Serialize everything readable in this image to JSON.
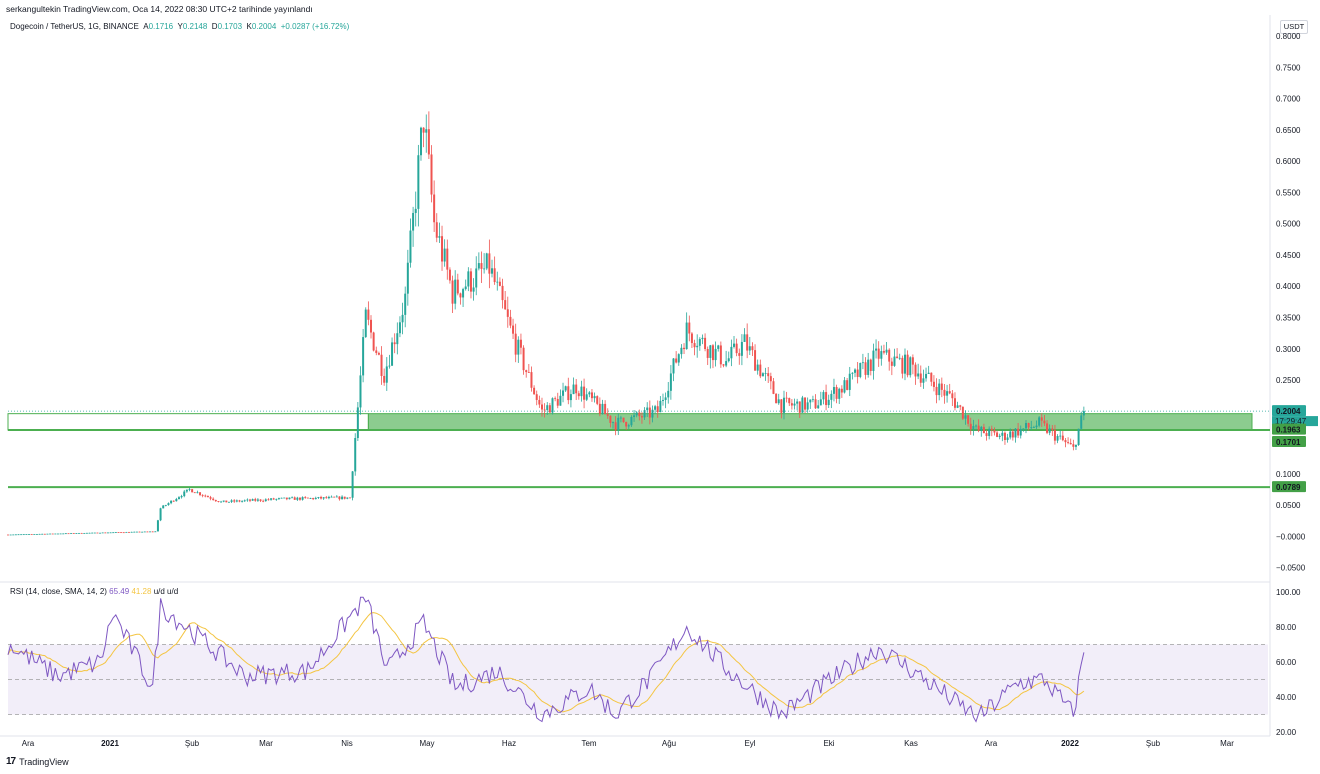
{
  "header": {
    "text": "serkangultekin TradingView.com, Oca 14, 2022 08:30 UTC+2 tarihinde yayınlandı"
  },
  "legend": {
    "symbol": "Dogecoin / TetherUS, 1G, BINANCE",
    "open_label": "A",
    "open": "0.1716",
    "high_label": "Y",
    "high": "0.2148",
    "low_label": "D",
    "low": "0.1703",
    "close_label": "K",
    "close": "0.2004",
    "change": "+0.0287 (+16.72%)"
  },
  "price_axis": {
    "unit": "USDT",
    "ticks": [
      "0.8000",
      "0.7500",
      "0.7000",
      "0.6500",
      "0.6000",
      "0.5500",
      "0.5000",
      "0.4500",
      "0.4000",
      "0.3500",
      "0.3000",
      "0.2500",
      "0.1000",
      "0.0500",
      "−0.0000",
      "−0.0500"
    ]
  },
  "price_labels": {
    "last": "0.2004",
    "countdown": "17:29:47",
    "zone_top": "0.1963",
    "zone_bottom": "0.1701",
    "support": "0.0789"
  },
  "rsi": {
    "legend_title": "RSI (14, close, SMA, 14, 2)",
    "rsi_value": "65.49",
    "sma_value": "41.28",
    "ud": "u/d u/d",
    "ticks": [
      "100.00",
      "80.00",
      "60.00",
      "40.00",
      "20.00"
    ]
  },
  "time_axis": [
    "Ara",
    "2021",
    "Şub",
    "Mar",
    "Nis",
    "May",
    "Haz",
    "Tem",
    "Ağu",
    "Eyl",
    "Eki",
    "Kas",
    "Ara",
    "2022",
    "Şub",
    "Mar"
  ],
  "footer": {
    "logo": "17",
    "brand": "TradingView"
  },
  "colors": {
    "up": "#26a69a",
    "down": "#ef5350",
    "zone": "#4caf50",
    "rsi": "#7e57c2",
    "rsi_sma": "#f4c542",
    "rsi_band": "#ede7f6"
  },
  "chart_data": {
    "type": "candlestick",
    "title": "Dogecoin / TetherUS, 1G, BINANCE",
    "ylabel": "USDT",
    "ylim": [
      -0.06,
      0.8
    ],
    "x_range": [
      "2020-12-01",
      "2022-03-25"
    ],
    "zones": [
      {
        "kind": "support_zone",
        "from": "2021-04-17",
        "bottom": 0.1701,
        "top": 0.1963
      },
      {
        "kind": "horizontal_line",
        "value": 0.1701
      },
      {
        "kind": "horizontal_line",
        "value": 0.0789
      }
    ],
    "last_price": 0.2004,
    "price_anchors": [
      {
        "date": "2020-12-01",
        "price": 0.003
      },
      {
        "date": "2021-01-26",
        "price": 0.008
      },
      {
        "date": "2021-01-28",
        "price": 0.045
      },
      {
        "date": "2021-02-08",
        "price": 0.075
      },
      {
        "date": "2021-02-20",
        "price": 0.055
      },
      {
        "date": "2021-03-15",
        "price": 0.06
      },
      {
        "date": "2021-04-10",
        "price": 0.062
      },
      {
        "date": "2021-04-16",
        "price": 0.35
      },
      {
        "date": "2021-04-23",
        "price": 0.26
      },
      {
        "date": "2021-05-01",
        "price": 0.38
      },
      {
        "date": "2021-05-08",
        "price": 0.67
      },
      {
        "date": "2021-05-12",
        "price": 0.5
      },
      {
        "date": "2021-05-19",
        "price": 0.39
      },
      {
        "date": "2021-06-02",
        "price": 0.43
      },
      {
        "date": "2021-06-10",
        "price": 0.33
      },
      {
        "date": "2021-06-22",
        "price": 0.2
      },
      {
        "date": "2021-07-05",
        "price": 0.24
      },
      {
        "date": "2021-07-20",
        "price": 0.18
      },
      {
        "date": "2021-08-05",
        "price": 0.2
      },
      {
        "date": "2021-08-16",
        "price": 0.33
      },
      {
        "date": "2021-08-31",
        "price": 0.28
      },
      {
        "date": "2021-09-07",
        "price": 0.31
      },
      {
        "date": "2021-09-21",
        "price": 0.21
      },
      {
        "date": "2021-10-03",
        "price": 0.21
      },
      {
        "date": "2021-10-15",
        "price": 0.24
      },
      {
        "date": "2021-10-28",
        "price": 0.29
      },
      {
        "date": "2021-11-10",
        "price": 0.27
      },
      {
        "date": "2021-11-25",
        "price": 0.22
      },
      {
        "date": "2021-12-04",
        "price": 0.17
      },
      {
        "date": "2021-12-14",
        "price": 0.16
      },
      {
        "date": "2021-12-28",
        "price": 0.18
      },
      {
        "date": "2022-01-10",
        "price": 0.14
      },
      {
        "date": "2022-01-14",
        "price": 0.2004
      }
    ],
    "rsi_series": {
      "name": "RSI (14, close, SMA, 14, 2)",
      "ylim": [
        20,
        100
      ],
      "bands": [
        30,
        50,
        70
      ],
      "last": 65.49,
      "sma_last": 41.28,
      "anchors": [
        {
          "date": "2020-12-01",
          "value": 70
        },
        {
          "date": "2020-12-20",
          "value": 52
        },
        {
          "date": "2021-01-05",
          "value": 60
        },
        {
          "date": "2021-01-10",
          "value": 88
        },
        {
          "date": "2021-01-25",
          "value": 45
        },
        {
          "date": "2021-01-28",
          "value": 92
        },
        {
          "date": "2021-02-15",
          "value": 70
        },
        {
          "date": "2021-03-01",
          "value": 52
        },
        {
          "date": "2021-03-25",
          "value": 55
        },
        {
          "date": "2021-04-16",
          "value": 97
        },
        {
          "date": "2021-04-24",
          "value": 55
        },
        {
          "date": "2021-05-08",
          "value": 82
        },
        {
          "date": "2021-05-20",
          "value": 45
        },
        {
          "date": "2021-06-05",
          "value": 55
        },
        {
          "date": "2021-06-22",
          "value": 30
        },
        {
          "date": "2021-07-10",
          "value": 45
        },
        {
          "date": "2021-07-20",
          "value": 30
        },
        {
          "date": "2021-08-03",
          "value": 52
        },
        {
          "date": "2021-08-16",
          "value": 80
        },
        {
          "date": "2021-09-01",
          "value": 55
        },
        {
          "date": "2021-09-21",
          "value": 30
        },
        {
          "date": "2021-10-05",
          "value": 45
        },
        {
          "date": "2021-10-28",
          "value": 68
        },
        {
          "date": "2021-11-10",
          "value": 55
        },
        {
          "date": "2021-11-28",
          "value": 35
        },
        {
          "date": "2021-12-05",
          "value": 28
        },
        {
          "date": "2021-12-20",
          "value": 48
        },
        {
          "date": "2021-12-30",
          "value": 50
        },
        {
          "date": "2022-01-10",
          "value": 30
        },
        {
          "date": "2022-01-14",
          "value": 65.49
        }
      ]
    }
  }
}
